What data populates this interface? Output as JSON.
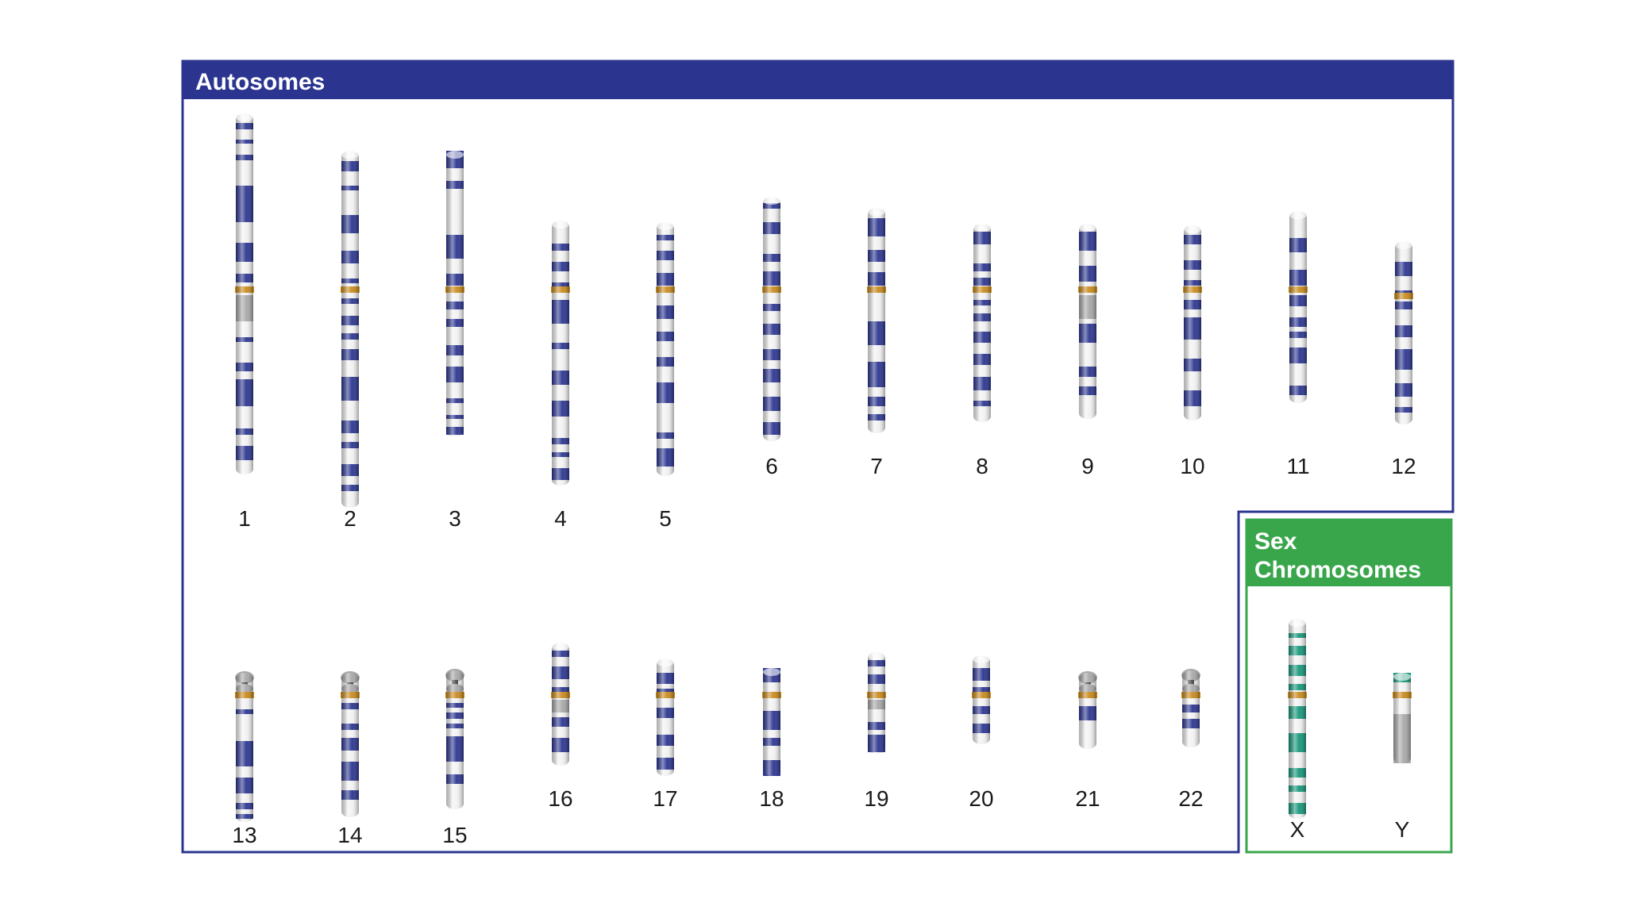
{
  "autosomes_title": "Autosomes",
  "sex_title_line1": "Sex",
  "sex_title_line2": "Chromosomes",
  "colors": {
    "autosome_frame": "#2b3590",
    "sex_frame": "#3aa64c",
    "autosome_band": "#2b3590",
    "sex_band": "#17977a",
    "centromere": "#c98a1c",
    "chromosome_body": "#f2f2f2",
    "heterochromatin": "#a8a8a8"
  },
  "chromosomes": [
    {
      "label": "1",
      "group": "autosome"
    },
    {
      "label": "2",
      "group": "autosome"
    },
    {
      "label": "3",
      "group": "autosome"
    },
    {
      "label": "4",
      "group": "autosome"
    },
    {
      "label": "5",
      "group": "autosome"
    },
    {
      "label": "6",
      "group": "autosome"
    },
    {
      "label": "7",
      "group": "autosome"
    },
    {
      "label": "8",
      "group": "autosome"
    },
    {
      "label": "9",
      "group": "autosome"
    },
    {
      "label": "10",
      "group": "autosome"
    },
    {
      "label": "11",
      "group": "autosome"
    },
    {
      "label": "12",
      "group": "autosome"
    },
    {
      "label": "13",
      "group": "autosome"
    },
    {
      "label": "14",
      "group": "autosome"
    },
    {
      "label": "15",
      "group": "autosome"
    },
    {
      "label": "16",
      "group": "autosome"
    },
    {
      "label": "17",
      "group": "autosome"
    },
    {
      "label": "18",
      "group": "autosome"
    },
    {
      "label": "19",
      "group": "autosome"
    },
    {
      "label": "20",
      "group": "autosome"
    },
    {
      "label": "21",
      "group": "autosome"
    },
    {
      "label": "22",
      "group": "autosome"
    },
    {
      "label": "X",
      "group": "sex"
    },
    {
      "label": "Y",
      "group": "sex"
    }
  ]
}
